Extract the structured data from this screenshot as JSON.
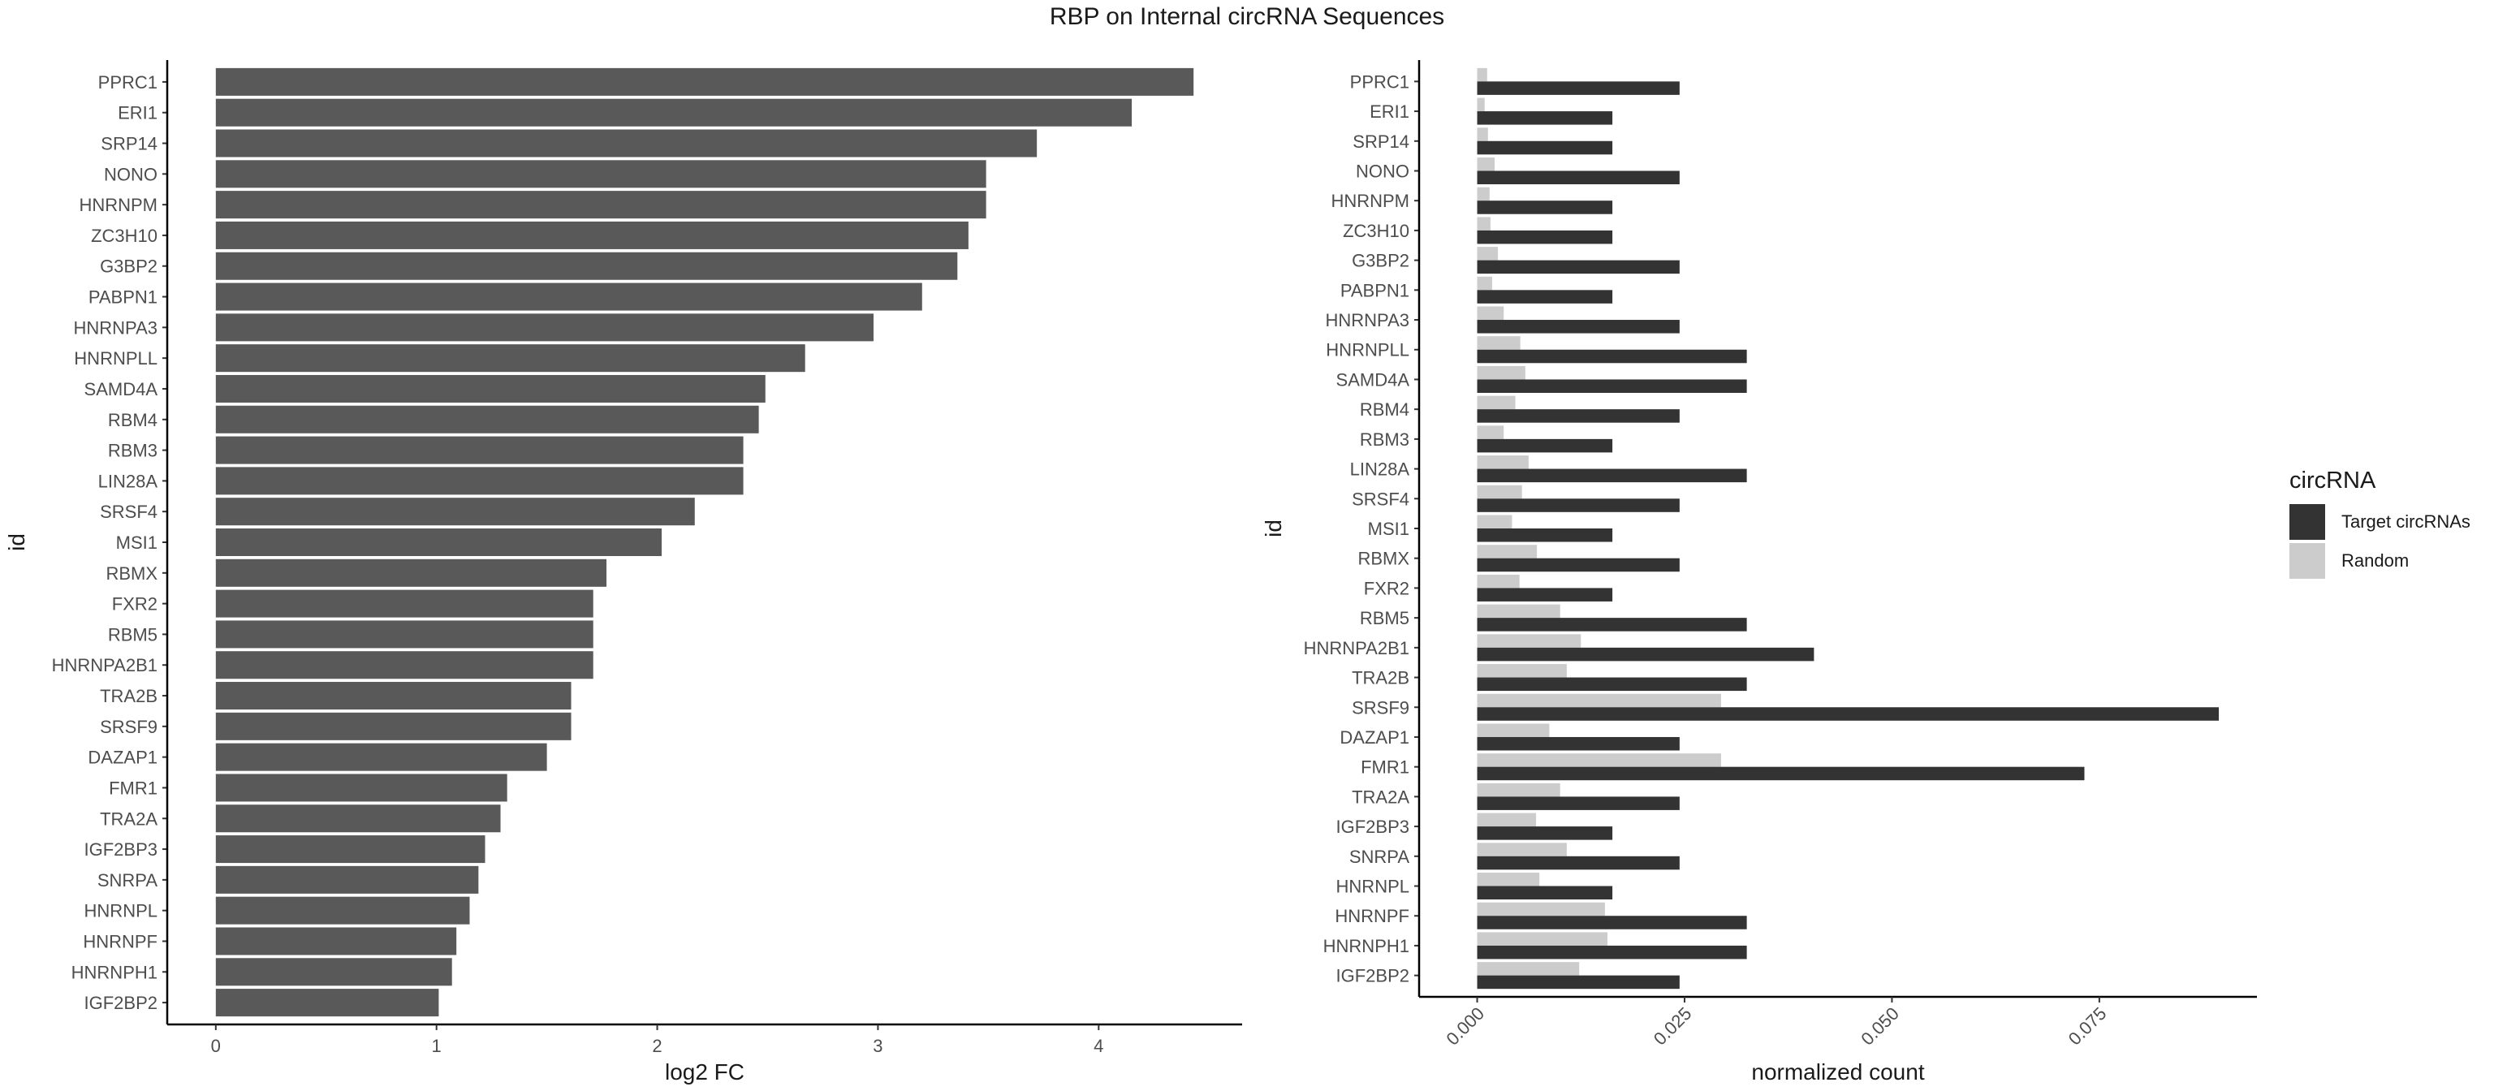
{
  "title": "RBP on Internal circRNA Sequences",
  "chart_data": [
    {
      "type": "bar",
      "orientation": "horizontal",
      "xlabel": "log2 FC",
      "ylabel": "id",
      "xlim": [
        -0.22,
        4.65
      ],
      "xticks": [
        0,
        1,
        2,
        3,
        4
      ],
      "grid": false,
      "bar_color": "#595959",
      "categories": [
        "PPRC1",
        "ERI1",
        "SRP14",
        "NONO",
        "HNRNPM",
        "ZC3H10",
        "G3BP2",
        "PABPN1",
        "HNRNPA3",
        "HNRNPLL",
        "SAMD4A",
        "RBM4",
        "RBM3",
        "LIN28A",
        "SRSF4",
        "MSI1",
        "RBMX",
        "FXR2",
        "RBM5",
        "HNRNPA2B1",
        "TRA2B",
        "SRSF9",
        "DAZAP1",
        "FMR1",
        "TRA2A",
        "IGF2BP3",
        "SNRPA",
        "HNRNPL",
        "HNRNPF",
        "HNRNPH1",
        "IGF2BP2"
      ],
      "values": [
        4.43,
        4.15,
        3.72,
        3.49,
        3.49,
        3.41,
        3.36,
        3.2,
        2.98,
        2.67,
        2.49,
        2.46,
        2.39,
        2.39,
        2.17,
        2.02,
        1.77,
        1.71,
        1.71,
        1.71,
        1.61,
        1.61,
        1.5,
        1.32,
        1.29,
        1.22,
        1.19,
        1.15,
        1.09,
        1.07,
        1.01
      ]
    },
    {
      "type": "bar",
      "orientation": "horizontal",
      "xlabel": "normalized count",
      "ylabel": "id",
      "xlim": [
        -0.007,
        0.094
      ],
      "xticks": [
        0,
        0.025,
        0.05,
        0.075
      ],
      "xtick_labels": [
        "0.000",
        "0.025",
        "0.050",
        "0.075"
      ],
      "grid": false,
      "legend": {
        "title": "circRNA",
        "position": "right"
      },
      "categories": [
        "PPRC1",
        "ERI1",
        "SRP14",
        "NONO",
        "HNRNPM",
        "ZC3H10",
        "G3BP2",
        "PABPN1",
        "HNRNPA3",
        "HNRNPLL",
        "SAMD4A",
        "RBM4",
        "RBM3",
        "LIN28A",
        "SRSF4",
        "MSI1",
        "RBMX",
        "FXR2",
        "RBM5",
        "HNRNPA2B1",
        "TRA2B",
        "SRSF9",
        "DAZAP1",
        "FMR1",
        "TRA2A",
        "IGF2BP3",
        "SNRPA",
        "HNRNPL",
        "HNRNPF",
        "HNRNPH1",
        "IGF2BP2"
      ],
      "series": [
        {
          "name": "Target circRNAs",
          "color": "#333333",
          "values": [
            0.0244,
            0.0163,
            0.0163,
            0.0244,
            0.0163,
            0.0163,
            0.0244,
            0.0163,
            0.0244,
            0.0325,
            0.0325,
            0.0244,
            0.0163,
            0.0325,
            0.0244,
            0.0163,
            0.0244,
            0.0163,
            0.0325,
            0.0406,
            0.0325,
            0.0894,
            0.0244,
            0.0732,
            0.0244,
            0.0163,
            0.0244,
            0.0163,
            0.0325,
            0.0325,
            0.0244
          ]
        },
        {
          "name": "Random",
          "color": "#cccccc",
          "values": [
            0.0012,
            0.0009,
            0.0013,
            0.0021,
            0.0015,
            0.0016,
            0.0025,
            0.0018,
            0.0032,
            0.0052,
            0.0058,
            0.0046,
            0.0032,
            0.0062,
            0.0054,
            0.0042,
            0.0072,
            0.0051,
            0.01,
            0.0125,
            0.0108,
            0.0294,
            0.0087,
            0.0294,
            0.01,
            0.0071,
            0.0108,
            0.0075,
            0.0154,
            0.0157,
            0.0123
          ]
        }
      ]
    }
  ]
}
